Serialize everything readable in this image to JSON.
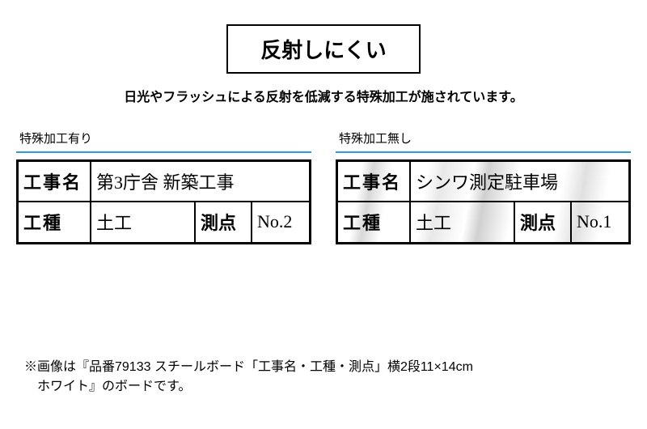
{
  "title": "反射しにくい",
  "subtitle": "日光やフラッシュによる反射を低減する特殊加工が施されています。",
  "colors": {
    "accent_blue": "#3399dd",
    "border": "#000000",
    "background": "#ffffff"
  },
  "comparison": {
    "left": {
      "label": "特殊加工有り",
      "glossy": false,
      "rows": [
        {
          "label": "工事名",
          "value": "第3庁舎 新築工事",
          "split": false
        },
        {
          "label": "工種",
          "value": "土工",
          "label2": "測点",
          "value2": "No.2",
          "split": true
        }
      ]
    },
    "right": {
      "label": "特殊加工無し",
      "glossy": true,
      "rows": [
        {
          "label": "工事名",
          "value": "シンワ測定駐車場",
          "split": false
        },
        {
          "label": "工種",
          "value": "土工",
          "label2": "測点",
          "value2": "No.1",
          "split": true
        }
      ]
    }
  },
  "note": {
    "line1": "※画像は『品番79133 スチールボード「工事名・工種・測点」横2段11×14cm",
    "line2": "ホワイト』のボードです。"
  },
  "typography": {
    "title_fontsize": 26,
    "subtitle_fontsize": 16,
    "label_fontsize": 15,
    "cell_fontsize": 22,
    "note_fontsize": 16
  }
}
